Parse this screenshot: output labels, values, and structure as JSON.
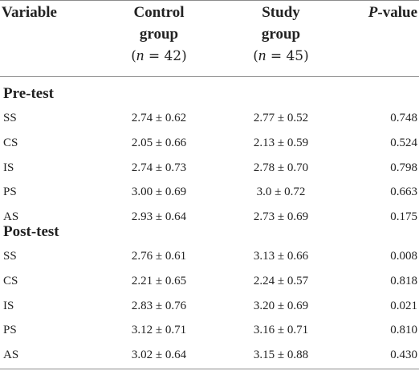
{
  "table": {
    "header": {
      "variable": "Variable",
      "control": {
        "line1": "Control",
        "line2": "group",
        "n_label": "n",
        "n_value": "= 42"
      },
      "study": {
        "line1": "Study",
        "line2": "group",
        "n_label": "n",
        "n_value": "= 45"
      },
      "pvalue": {
        "italic": "P",
        "rest": "-value"
      }
    },
    "sections": [
      {
        "title": "Pre-test",
        "rows": [
          {
            "variable": "SS",
            "control": "2.74 ± 0.62",
            "study": "2.77 ± 0.52",
            "p": "0.748"
          },
          {
            "variable": "CS",
            "control": "2.05 ± 0.66",
            "study": "2.13 ± 0.59",
            "p": "0.524"
          },
          {
            "variable": "IS",
            "control": "2.74 ± 0.73",
            "study": "2.78 ± 0.70",
            "p": "0.798"
          },
          {
            "variable": "PS",
            "control": "3.00 ± 0.69",
            "study": "3.0 ± 0.72",
            "p": "0.663"
          },
          {
            "variable": "AS",
            "control": "2.93 ± 0.64",
            "study": "2.73 ± 0.69",
            "p": "0.175"
          }
        ]
      },
      {
        "title": "Post-test",
        "rows": [
          {
            "variable": "SS",
            "control": "2.76 ± 0.61",
            "study": "3.13 ± 0.66",
            "p": "0.008"
          },
          {
            "variable": "CS",
            "control": "2.21 ± 0.65",
            "study": "2.24 ± 0.57",
            "p": "0.818"
          },
          {
            "variable": "IS",
            "control": "2.83 ± 0.76",
            "study": "3.20 ± 0.69",
            "p": "0.021"
          },
          {
            "variable": "PS",
            "control": "3.12 ± 0.71",
            "study": "3.16 ± 0.71",
            "p": "0.810"
          },
          {
            "variable": "AS",
            "control": "3.02 ± 0.64",
            "study": "3.15 ± 0.88",
            "p": "0.430"
          }
        ]
      }
    ]
  }
}
